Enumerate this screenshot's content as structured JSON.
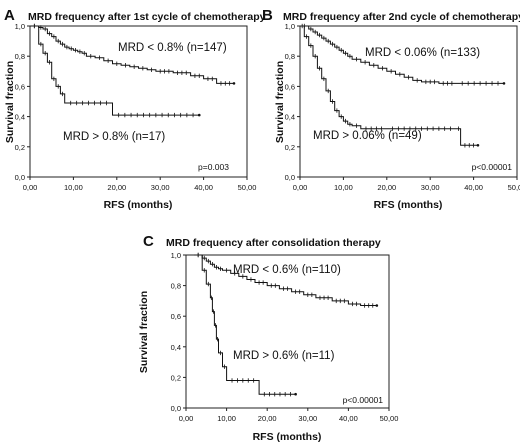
{
  "chart_data": [
    {
      "panel_label": "A",
      "type": "line",
      "title": "MRD frequency after 1st cycle of chemotherapy",
      "xlabel": "RFS (months)",
      "ylabel": "Survival fraction",
      "xlim": [
        0,
        50
      ],
      "ylim": [
        0,
        1
      ],
      "xticks": [
        "0,00",
        "10,00",
        "20,00",
        "30,00",
        "40,00",
        "50,00"
      ],
      "yticks": [
        "0,0",
        "0,2",
        "0,4",
        "0,6",
        "0,8",
        "1,0"
      ],
      "p_value": "p=0.003",
      "series": [
        {
          "name": "MRD < 0.8% (n=147)",
          "points": [
            [
              0,
              1.0
            ],
            [
              2,
              0.99
            ],
            [
              3,
              0.98
            ],
            [
              4,
              0.95
            ],
            [
              5,
              0.93
            ],
            [
              6,
              0.9
            ],
            [
              7,
              0.88
            ],
            [
              8,
              0.86
            ],
            [
              9,
              0.85
            ],
            [
              10,
              0.84
            ],
            [
              11,
              0.83
            ],
            [
              12,
              0.82
            ],
            [
              13,
              0.8
            ],
            [
              15,
              0.79
            ],
            [
              17,
              0.77
            ],
            [
              19,
              0.75
            ],
            [
              21,
              0.74
            ],
            [
              23,
              0.73
            ],
            [
              25,
              0.72
            ],
            [
              27,
              0.71
            ],
            [
              29,
              0.7
            ],
            [
              33,
              0.69
            ],
            [
              37,
              0.67
            ],
            [
              40,
              0.65
            ],
            [
              43,
              0.62
            ],
            [
              47,
              0.62
            ]
          ]
        },
        {
          "name": "MRD > 0.8% (n=17)",
          "points": [
            [
              0,
              1.0
            ],
            [
              2,
              0.88
            ],
            [
              3,
              0.82
            ],
            [
              4,
              0.76
            ],
            [
              5,
              0.65
            ],
            [
              6,
              0.6
            ],
            [
              7,
              0.55
            ],
            [
              8,
              0.49
            ],
            [
              19,
              0.41
            ],
            [
              39,
              0.41
            ]
          ]
        }
      ]
    },
    {
      "panel_label": "B",
      "type": "line",
      "title": "MRD frequency after 2nd cycle of chemotherapy",
      "xlabel": "RFS (months)",
      "ylabel": "Survival fraction",
      "xlim": [
        0,
        50
      ],
      "ylim": [
        0,
        1
      ],
      "xticks": [
        "0,00",
        "10,00",
        "20,00",
        "30,00",
        "40,00",
        "50,00"
      ],
      "yticks": [
        "0,0",
        "0,2",
        "0,4",
        "0,6",
        "0,8",
        "1,0"
      ],
      "p_value": "p<0.00001",
      "series": [
        {
          "name": "MRD < 0.06% (n=133)",
          "points": [
            [
              0,
              1.0
            ],
            [
              2,
              0.98
            ],
            [
              3,
              0.96
            ],
            [
              4,
              0.94
            ],
            [
              5,
              0.92
            ],
            [
              6,
              0.9
            ],
            [
              7,
              0.88
            ],
            [
              8,
              0.86
            ],
            [
              9,
              0.84
            ],
            [
              10,
              0.82
            ],
            [
              11,
              0.8
            ],
            [
              12,
              0.78
            ],
            [
              14,
              0.76
            ],
            [
              16,
              0.74
            ],
            [
              18,
              0.72
            ],
            [
              20,
              0.7
            ],
            [
              22,
              0.68
            ],
            [
              24,
              0.66
            ],
            [
              26,
              0.64
            ],
            [
              28,
              0.63
            ],
            [
              32,
              0.62
            ],
            [
              36,
              0.62
            ],
            [
              47,
              0.62
            ]
          ]
        },
        {
          "name": "MRD > 0.06% (n=49)",
          "points": [
            [
              0,
              1.0
            ],
            [
              1,
              0.93
            ],
            [
              2,
              0.87
            ],
            [
              3,
              0.8
            ],
            [
              4,
              0.72
            ],
            [
              5,
              0.65
            ],
            [
              6,
              0.57
            ],
            [
              7,
              0.5
            ],
            [
              8,
              0.44
            ],
            [
              9,
              0.4
            ],
            [
              10,
              0.37
            ],
            [
              11,
              0.35
            ],
            [
              12,
              0.34
            ],
            [
              14,
              0.32
            ],
            [
              20,
              0.32
            ],
            [
              36,
              0.32
            ],
            [
              37,
              0.21
            ],
            [
              41,
              0.21
            ]
          ]
        }
      ]
    },
    {
      "panel_label": "C",
      "type": "line",
      "title": "MRD frequency after consolidation therapy",
      "xlabel": "RFS (months)",
      "ylabel": "Survival fraction",
      "xlim": [
        0,
        50
      ],
      "ylim": [
        0,
        1
      ],
      "xticks": [
        "0,00",
        "10,00",
        "20,00",
        "30,00",
        "40,00",
        "50,00"
      ],
      "yticks": [
        "0,0",
        "0,2",
        "0,4",
        "0,6",
        "0,8",
        "1,0"
      ],
      "p_value": "p<0.00001",
      "series": [
        {
          "name": "MRD < 0.6% (n=110)",
          "points": [
            [
              2,
              1.0
            ],
            [
              4,
              0.98
            ],
            [
              5,
              0.96
            ],
            [
              6,
              0.94
            ],
            [
              7,
              0.92
            ],
            [
              8,
              0.91
            ],
            [
              9,
              0.9
            ],
            [
              11,
              0.88
            ],
            [
              13,
              0.86
            ],
            [
              15,
              0.84
            ],
            [
              17,
              0.82
            ],
            [
              20,
              0.8
            ],
            [
              23,
              0.78
            ],
            [
              26,
              0.76
            ],
            [
              29,
              0.74
            ],
            [
              32,
              0.72
            ],
            [
              36,
              0.7
            ],
            [
              40,
              0.68
            ],
            [
              43,
              0.67
            ],
            [
              47,
              0.67
            ]
          ]
        },
        {
          "name": "MRD > 0.6% (n=11)",
          "points": [
            [
              2,
              1.0
            ],
            [
              4,
              0.9
            ],
            [
              5,
              0.81
            ],
            [
              6,
              0.72
            ],
            [
              6.5,
              0.63
            ],
            [
              7,
              0.54
            ],
            [
              7.5,
              0.45
            ],
            [
              8,
              0.36
            ],
            [
              9,
              0.27
            ],
            [
              10,
              0.18
            ],
            [
              18,
              0.09
            ],
            [
              27,
              0.09
            ]
          ]
        }
      ]
    }
  ]
}
